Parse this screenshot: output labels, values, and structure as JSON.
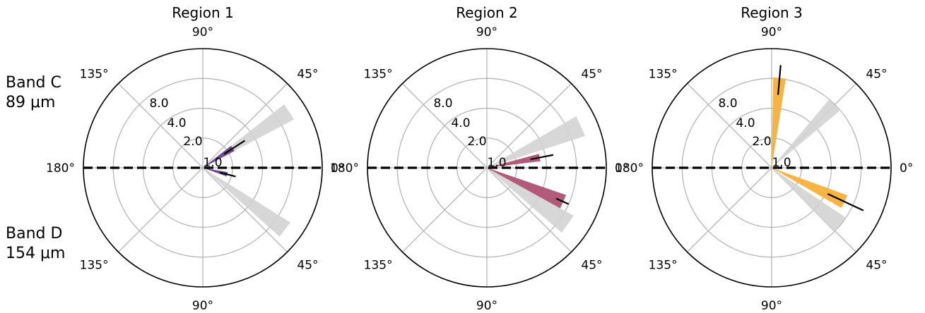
{
  "figure": {
    "row_labels": [
      {
        "name": "Band C",
        "wavelength": "89 μm"
      },
      {
        "name": "Band D",
        "wavelength": "154 μm"
      }
    ]
  },
  "colors": {
    "region_1": "#6e4c8f",
    "region_2": "#b15a7a",
    "region_3": "#f6b444",
    "reference": "#d3d3d3",
    "grid": "#b0b0b0",
    "axis": "#000000"
  },
  "chart_data": [
    {
      "type": "polar-bar",
      "title": "Region 1",
      "radial_scale": "log2",
      "radial_ticks": [
        "1.0",
        "2.0",
        "4.0",
        "8.0"
      ],
      "rmax": 16,
      "angle_labels": {
        "top": "90°",
        "upper_right": "45°",
        "upper_left": "135°",
        "right": "0°",
        "left": "180°",
        "lower_right": "45°",
        "lower_left": "135°",
        "bottom": "90°"
      },
      "band_c": {
        "bar": {
          "angle_deg": 33,
          "width_deg": 10,
          "value": 2.3,
          "err_low": 1.8,
          "err_high": 3.2
        },
        "reference": {
          "angle_deg": 33,
          "width_deg": 10,
          "value": 11.0
        }
      },
      "band_d": {
        "bar": {
          "angle_deg": 15,
          "width_deg": 10,
          "value": 1.8,
          "err_low": 1.5,
          "err_high": 2.2
        },
        "reference": {
          "angle_deg": 37,
          "width_deg": 10,
          "value": 11.0
        }
      }
    },
    {
      "type": "polar-bar",
      "title": "Region 2",
      "radial_scale": "log2",
      "radial_ticks": [
        "1.0",
        "2.0",
        "4.0",
        "8.0"
      ],
      "rmax": 16,
      "angle_labels": {
        "top": "90°",
        "upper_right": "45°",
        "upper_left": "135°",
        "right": "0°",
        "left": "180°",
        "lower_right": "45°",
        "lower_left": "135°",
        "bottom": "90°"
      },
      "band_c": {
        "bar": {
          "angle_deg": 11,
          "width_deg": 8,
          "value": 3.5,
          "err_low": 2.8,
          "err_high": 4.8
        },
        "reference": {
          "angle_deg": 24,
          "width_deg": 12,
          "value": 11.0
        }
      },
      "band_d": {
        "bar": {
          "angle_deg": 24,
          "width_deg": 10,
          "value": 7.0,
          "err_low": 5.8,
          "err_high": 8.0
        },
        "reference": {
          "angle_deg": 35,
          "width_deg": 12,
          "value": 10.0
        }
      }
    },
    {
      "type": "polar-bar",
      "title": "Region 3",
      "radial_scale": "log2",
      "radial_ticks": [
        "1.0",
        "2.0",
        "4.0",
        "8.0"
      ],
      "rmax": 16,
      "angle_labels": {
        "top": "90°",
        "upper_right": "45°",
        "upper_left": "135°",
        "right": "0°",
        "left": "180°",
        "lower_right": "45°",
        "lower_left": "135°",
        "bottom": "90°"
      },
      "band_c": {
        "bar": {
          "angle_deg": 85,
          "width_deg": 8,
          "value": 8.2,
          "err_low": 5.5,
          "err_high": 11.0
        },
        "reference": {
          "angle_deg": 45,
          "width_deg": 10,
          "value": 8.0
        }
      },
      "band_d": {
        "bar": {
          "angle_deg": 25,
          "width_deg": 10,
          "value": 6.5,
          "err_low": 4.2,
          "err_high": 10.5
        },
        "reference": {
          "angle_deg": 40,
          "width_deg": 12,
          "value": 8.0
        }
      }
    }
  ]
}
